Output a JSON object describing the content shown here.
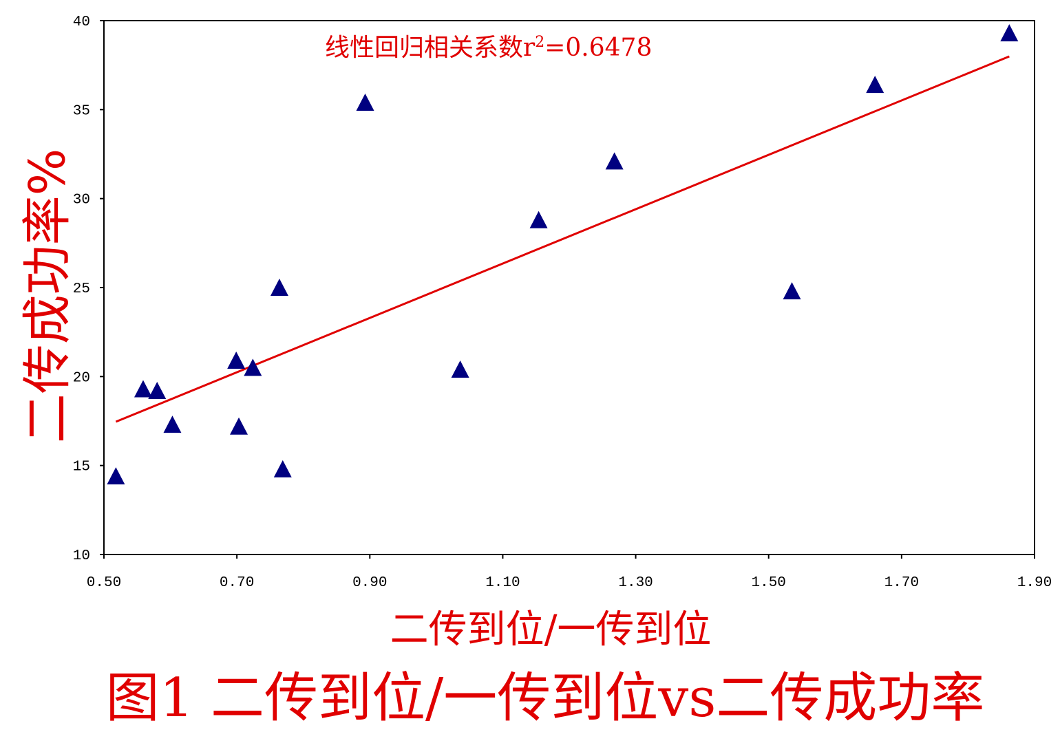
{
  "chart_data": {
    "type": "scatter",
    "title": "图1 二传到位/一传到位vs二传成功率",
    "xlabel": "二传到位/一传到位",
    "ylabel": "二传成功率%",
    "annotation": {
      "prefix": "线性回归相关系数r",
      "sup": "2",
      "suffix": "=0.6478"
    },
    "xlim": [
      0.5,
      1.9
    ],
    "ylim": [
      10,
      40
    ],
    "x_ticks": [
      "0.50",
      "0.70",
      "0.90",
      "1.10",
      "1.30",
      "1.50",
      "1.70",
      "1.90"
    ],
    "y_ticks": [
      "10",
      "15",
      "20",
      "25",
      "30",
      "35",
      "40"
    ],
    "grid": false,
    "marker": "triangle",
    "marker_color": "#000080",
    "trendline_color": "#e00000",
    "points": [
      {
        "x": 0.518,
        "y": 14.4
      },
      {
        "x": 0.559,
        "y": 19.3
      },
      {
        "x": 0.58,
        "y": 19.2
      },
      {
        "x": 0.603,
        "y": 17.3
      },
      {
        "x": 0.699,
        "y": 20.9
      },
      {
        "x": 0.703,
        "y": 17.2
      },
      {
        "x": 0.724,
        "y": 20.5
      },
      {
        "x": 0.764,
        "y": 25.0
      },
      {
        "x": 0.769,
        "y": 14.8
      },
      {
        "x": 0.893,
        "y": 35.4
      },
      {
        "x": 1.036,
        "y": 20.4
      },
      {
        "x": 1.154,
        "y": 28.8
      },
      {
        "x": 1.268,
        "y": 32.1
      },
      {
        "x": 1.535,
        "y": 24.8
      },
      {
        "x": 1.66,
        "y": 36.4
      },
      {
        "x": 1.862,
        "y": 39.3
      }
    ],
    "trendline": {
      "x": [
        0.518,
        1.862
      ],
      "y": [
        17.46,
        37.99
      ]
    }
  }
}
